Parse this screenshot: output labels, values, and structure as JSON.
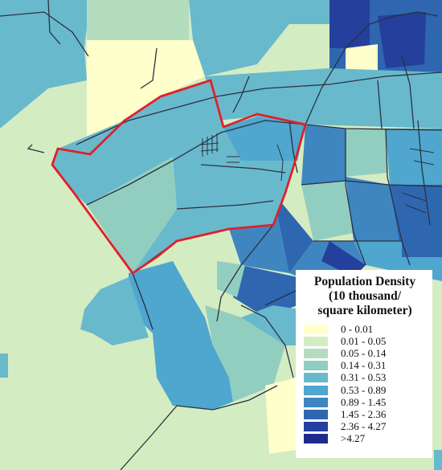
{
  "legend": {
    "title_lines": [
      "Population Density",
      "(10 thousand/",
      "square kilometer)"
    ],
    "classes": [
      {
        "label": "0 - 0.01",
        "color": "#ffffcc"
      },
      {
        "label": "0.01 - 0.05",
        "color": "#d4ecc2"
      },
      {
        "label": "0.05 - 0.14",
        "color": "#b4dcbe"
      },
      {
        "label": "0.14 - 0.31",
        "color": "#92cec0"
      },
      {
        "label": "0.31 - 0.53",
        "color": "#69b9cd"
      },
      {
        "label": "0.53 - 0.89",
        "color": "#4fa6cf"
      },
      {
        "label": "0.89 - 1.45",
        "color": "#3f86c1"
      },
      {
        "label": "1.45 - 2.36",
        "color": "#2f66b0"
      },
      {
        "label": "2.36 - 4.27",
        "color": "#253f9c"
      },
      {
        "label": ">4.27",
        "color": "#1f2b8c"
      }
    ]
  },
  "map": {
    "boundary_color": "#e0202a",
    "road_color": "#2b3140"
  }
}
